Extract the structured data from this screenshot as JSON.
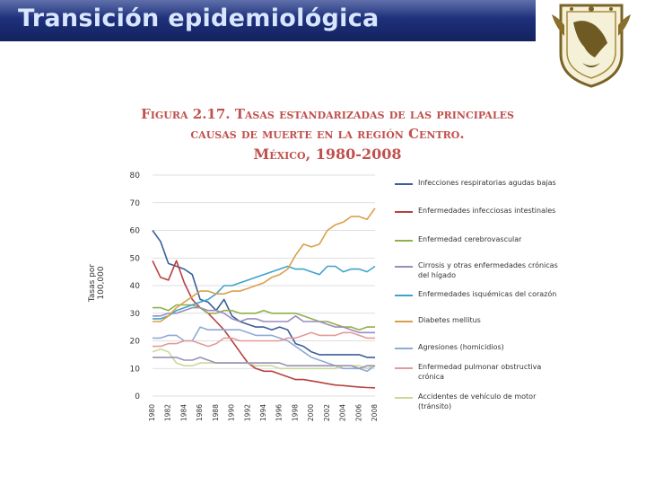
{
  "header": {
    "title": "Transición epidemiológica"
  },
  "logo": {
    "name": "university-crest-icon"
  },
  "figure": {
    "title_line1": "Figura 2.17. Tasas estandarizadas de las principales",
    "title_line2": "causas de muerte en la región Centro.",
    "title_line3": "México, 1980-2008"
  },
  "chart_data": {
    "type": "line",
    "ylabel": "Tasas por 100,000",
    "xlabel": "",
    "ylim": [
      0,
      80
    ],
    "yticks": [
      0,
      10,
      20,
      30,
      40,
      50,
      60,
      70,
      80
    ],
    "x": [
      1980,
      1981,
      1982,
      1983,
      1984,
      1985,
      1986,
      1987,
      1988,
      1989,
      1990,
      1991,
      1992,
      1993,
      1994,
      1995,
      1996,
      1997,
      1998,
      1999,
      2000,
      2001,
      2002,
      2003,
      2004,
      2005,
      2006,
      2007,
      2008
    ],
    "xtick_labels": [
      "1980",
      "1982",
      "1984",
      "1986",
      "1988",
      "1990",
      "1992",
      "1994",
      "1996",
      "1998",
      "2000",
      "2002",
      "2004",
      "2006",
      "2008"
    ],
    "series": [
      {
        "name": "Infecciones respiratorias agudas bajas",
        "color": "#3a5f9a",
        "values": [
          60,
          56,
          48,
          47,
          46,
          44,
          35,
          34,
          31,
          35,
          29,
          27,
          26,
          25,
          25,
          24,
          25,
          24,
          19,
          18,
          16,
          15,
          15,
          15,
          15,
          15,
          15,
          14,
          14
        ]
      },
      {
        "name": "Enfermedades infecciosas intestinales",
        "color": "#b8403f",
        "values": [
          49,
          43,
          42,
          49,
          41,
          35,
          32,
          30,
          27,
          24,
          20,
          16,
          12,
          10,
          9,
          9,
          8,
          7,
          6,
          6,
          5.5,
          5,
          4.5,
          4,
          3.8,
          3.5,
          3.3,
          3.1,
          3
        ]
      },
      {
        "name": "Enfermedad cerebrovascular",
        "color": "#8fb04a",
        "values": [
          32,
          32,
          31,
          33,
          33,
          33,
          32,
          30,
          30,
          31,
          31,
          30,
          30,
          30,
          31,
          30,
          30,
          30,
          30,
          29,
          28,
          27,
          27,
          26,
          25,
          25,
          24,
          25,
          25
        ]
      },
      {
        "name": "Cirrosis y otras enfermedades crónicas del hígado",
        "color": "#9b8bbf",
        "values": [
          29,
          29,
          30,
          30,
          31,
          32,
          32,
          31,
          31,
          30,
          28,
          27,
          28,
          28,
          27,
          27,
          27,
          27,
          29,
          27,
          27,
          27,
          26,
          25,
          25,
          24,
          23,
          23,
          23
        ]
      },
      {
        "name": "Enfermedades isquémicas del corazón",
        "color": "#3fa3c9",
        "values": [
          28,
          28,
          29,
          31,
          32,
          33,
          34,
          35,
          37,
          40,
          40,
          41,
          42,
          43,
          44,
          45,
          46,
          47,
          46,
          46,
          45,
          44,
          47,
          47,
          45,
          46,
          46,
          45,
          47
        ]
      },
      {
        "name": "Diabetes mellitus",
        "color": "#d9a04a",
        "values": [
          27,
          27,
          29,
          32,
          34,
          36,
          38,
          38,
          37,
          37,
          38,
          38,
          39,
          40,
          41,
          43,
          44,
          46,
          51,
          55,
          54,
          55,
          60,
          62,
          63,
          65,
          65,
          64,
          68
        ]
      },
      {
        "name": "Agresiones (homicidios)",
        "color": "#8eaad6",
        "values": [
          21,
          21,
          22,
          22,
          20,
          20,
          25,
          24,
          24,
          24,
          24,
          24,
          23,
          22,
          22,
          22,
          21,
          20,
          18,
          16,
          14,
          13,
          12,
          11,
          10,
          10,
          10,
          9,
          11
        ]
      },
      {
        "name": "Enfermedad pulmonar obstructiva crónica",
        "color": "#e39a9a",
        "values": [
          18,
          18,
          19,
          19,
          20,
          20,
          19,
          18,
          19,
          21,
          21,
          20,
          20,
          20,
          20,
          20,
          20,
          21,
          21,
          22,
          23,
          22,
          22,
          22,
          23,
          23,
          22,
          21,
          21
        ]
      },
      {
        "name": "Accidentes de vehículo de motor (tránsito)",
        "color": "#cad99a",
        "values": [
          16,
          17,
          16,
          12,
          11,
          11,
          12,
          12,
          12,
          12,
          12,
          12,
          12,
          11,
          11,
          11,
          10,
          10,
          10,
          10,
          10,
          10,
          10,
          10,
          11,
          11,
          11,
          10,
          11
        ]
      },
      {
        "name": "",
        "color": "#9a90b5",
        "values": [
          14,
          14,
          14,
          14,
          13,
          13,
          14,
          13,
          12,
          12,
          12,
          12,
          12,
          12,
          12,
          12,
          12,
          11,
          11,
          11,
          11,
          11,
          11,
          11,
          11,
          11,
          10,
          11,
          11
        ]
      }
    ]
  }
}
